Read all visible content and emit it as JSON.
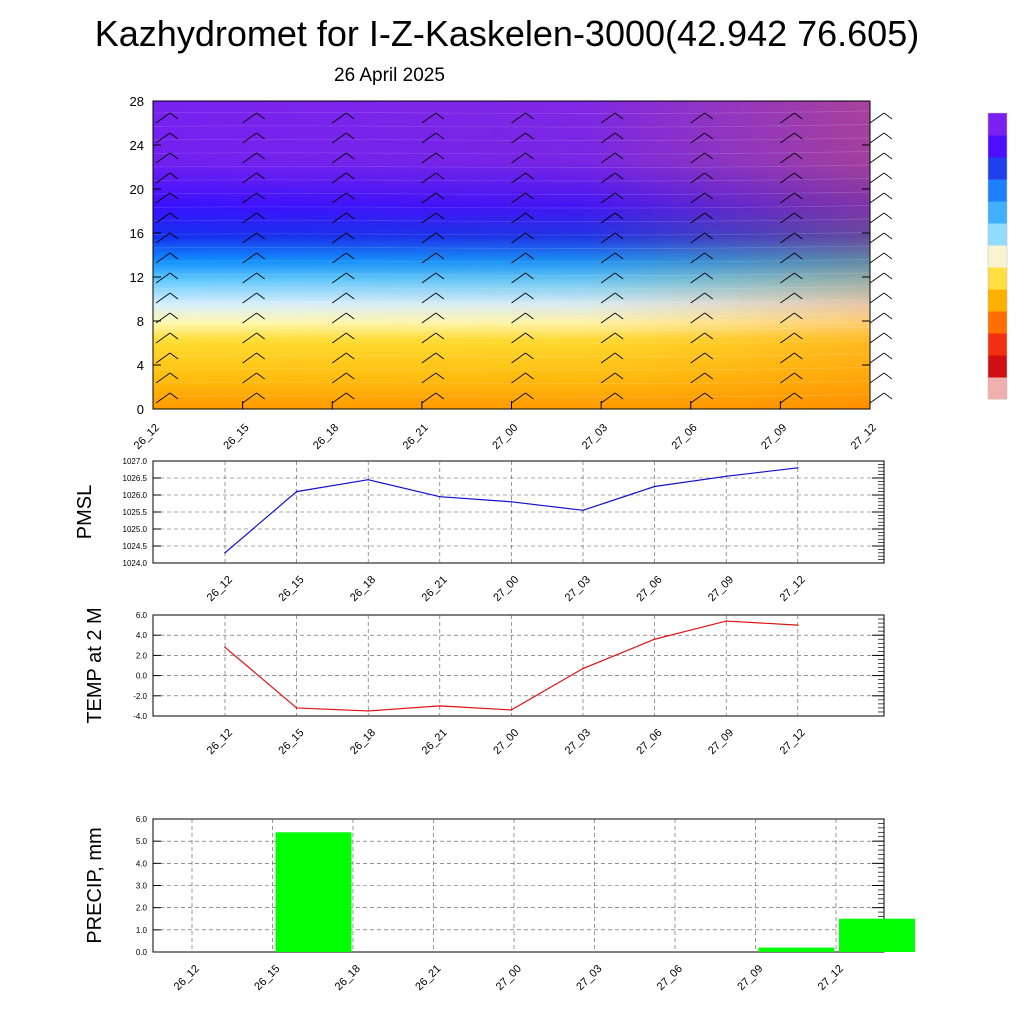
{
  "title": "Kazhydromet for I-Z-Kaskelen-3000(42.942 76.605)",
  "subtitle": "26 April 2025",
  "colors": {
    "pmsl_line": "#1010d0",
    "temp_line": "#e01010",
    "precip_bar": "#00ff00",
    "cross_section": [
      "#ff9a00",
      "#ffbe10",
      "#ffdc30",
      "#fff8b0",
      "#d8f0ff",
      "#60c8ff",
      "#1090ff",
      "#1530f0",
      "#3a10ff",
      "#7020f0"
    ],
    "colorbar": [
      "#7a20f0",
      "#4a10ff",
      "#2040f0",
      "#1e80ff",
      "#40b0ff",
      "#90dcff",
      "#f8f4d0",
      "#ffe040",
      "#ffb000",
      "#ff7000",
      "#f03010",
      "#d01010",
      "#f0b0b0"
    ]
  },
  "chart_data": [
    {
      "type": "heatmap",
      "name": "cross-section",
      "categories": [
        "26_12",
        "26_15",
        "26_18",
        "26_21",
        "27_00",
        "27_03",
        "27_06",
        "27_09",
        "27_12"
      ],
      "yticks": [
        "0",
        "4",
        "8",
        "12",
        "16",
        "20",
        "24",
        "28"
      ],
      "ylim": [
        0,
        28
      ],
      "grid": false
    },
    {
      "type": "line",
      "ylabel": "PMSL",
      "categories": [
        "26_12",
        "26_15",
        "26_18",
        "26_21",
        "27_00",
        "27_03",
        "27_06",
        "27_09",
        "27_12"
      ],
      "values": [
        1024.3,
        1026.1,
        1026.45,
        1025.95,
        1025.8,
        1025.55,
        1026.25,
        1026.55,
        1026.8
      ],
      "yticks": [
        "1024.0",
        "1024.5",
        "1025.0",
        "1025.5",
        "1026.0",
        "1026.5",
        "1027.0"
      ],
      "ylim": [
        1024.0,
        1027.0
      ],
      "grid": true
    },
    {
      "type": "line",
      "ylabel": "TEMP at 2 M",
      "categories": [
        "26_12",
        "26_15",
        "26_18",
        "26_21",
        "27_00",
        "27_03",
        "27_06",
        "27_09",
        "27_12"
      ],
      "values": [
        2.8,
        -3.2,
        -3.5,
        -3.0,
        -3.4,
        0.7,
        3.6,
        5.4,
        5.0
      ],
      "yticks": [
        "-4.0",
        "-2.0",
        "0.0",
        "2.0",
        "4.0",
        "6.0"
      ],
      "ylim": [
        -4.0,
        6.0
      ],
      "grid": true
    },
    {
      "type": "bar",
      "ylabel": "PRECIP, mm",
      "categories": [
        "26_12",
        "26_15",
        "26_18",
        "26_21",
        "27_00",
        "27_03",
        "27_06",
        "27_09",
        "27_12"
      ],
      "values": [
        0,
        5.4,
        0,
        0,
        0,
        0,
        0,
        0.2,
        1.5
      ],
      "yticks": [
        "0.0",
        "1.0",
        "2.0",
        "3.0",
        "4.0",
        "5.0",
        "6.0"
      ],
      "ylim": [
        0,
        6.0
      ],
      "grid": true
    }
  ]
}
